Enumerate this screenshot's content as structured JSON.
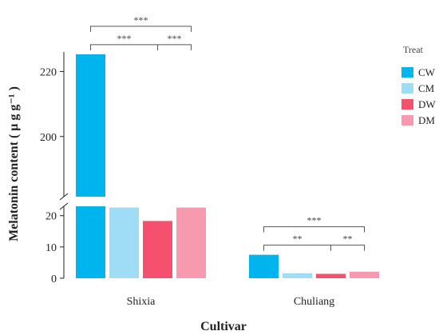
{
  "chart_data": {
    "type": "bar",
    "categories": [
      "Shixia",
      "Chuliang"
    ],
    "series": [
      {
        "name": "CW",
        "values": [
          225.3,
          7.5
        ]
      },
      {
        "name": "CM",
        "values": [
          22.6,
          1.6
        ]
      },
      {
        "name": "DW",
        "values": [
          18.3,
          1.4
        ]
      },
      {
        "name": "DM",
        "values": [
          22.6,
          2.1
        ]
      }
    ],
    "colors": [
      "#00b4ee",
      "#9fdcf6",
      "#f5506e",
      "#f79ab0"
    ],
    "xlabel": "Cultivar",
    "ylabel": "Melatonin content ( μ g g⁻¹ )",
    "legend_title": "Treat",
    "legend_position": "right",
    "y_axis_break": true,
    "lower_segment": {
      "ylim": [
        0,
        23
      ],
      "ticks": [
        0,
        10,
        20
      ]
    },
    "upper_segment": {
      "ylim": [
        181.5,
        226
      ],
      "ticks": [
        200,
        220
      ]
    },
    "grid": false,
    "significance": [
      {
        "category": "Shixia",
        "from_series": "CW",
        "to_series": "DW",
        "label": "***"
      },
      {
        "category": "Shixia",
        "from_series": "CW",
        "to_series": "DM",
        "label": "***"
      },
      {
        "category": "Shixia",
        "from_series": "DW",
        "to_series": "DM",
        "label": "***"
      },
      {
        "category": "Chuliang",
        "from_series": "CW",
        "to_series": "DW",
        "label": "**"
      },
      {
        "category": "Chuliang",
        "from_series": "CW",
        "to_series": "DM",
        "label": "***"
      },
      {
        "category": "Chuliang",
        "from_series": "DW",
        "to_series": "DM",
        "label": "**"
      }
    ]
  }
}
